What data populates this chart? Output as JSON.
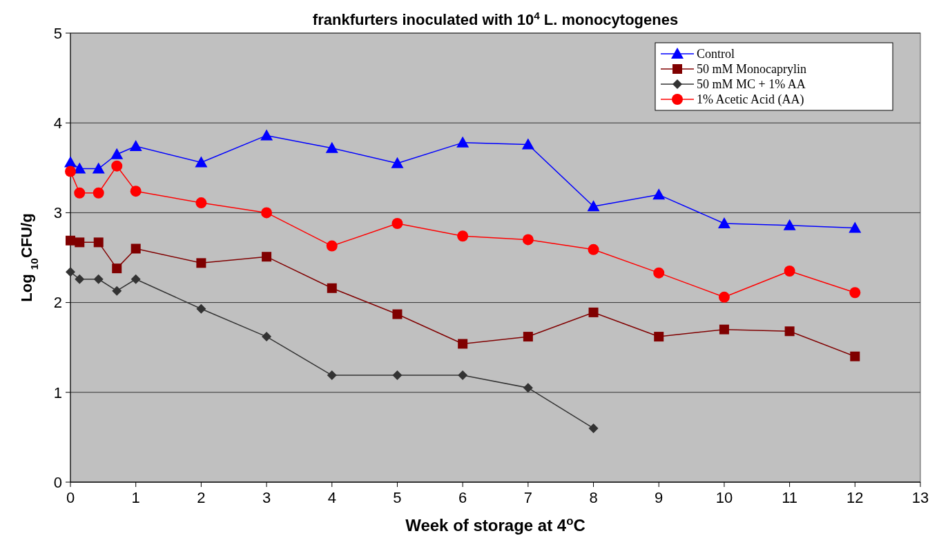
{
  "chart_data": {
    "type": "line",
    "title": "frankfurters inoculated with 10$^{4}$ L. monocytogenes",
    "xlabel": "Week  of storage at 4$^{o}$C",
    "ylabel": "Log $_{10}$CFU/g",
    "xlim": [
      0,
      13
    ],
    "xticks": [
      0,
      1,
      2,
      3,
      4,
      5,
      6,
      7,
      8,
      9,
      10,
      11,
      12,
      13
    ],
    "ylim": [
      0,
      5
    ],
    "yticks": [
      0,
      1,
      2,
      3,
      4,
      5
    ],
    "grid": "y",
    "legend": "top right",
    "x": [
      0,
      0.14,
      0.43,
      0.71,
      1,
      2,
      3,
      4,
      5,
      6,
      7,
      8,
      9,
      10,
      11,
      12
    ],
    "series": [
      {
        "name": "Control",
        "color": "#0000ff",
        "marker": "triangle",
        "values": [
          3.56,
          3.49,
          3.49,
          3.65,
          3.74,
          3.56,
          3.86,
          3.72,
          3.55,
          3.78,
          3.76,
          3.07,
          3.2,
          2.88,
          2.86,
          2.83
        ]
      },
      {
        "name": "50 mM Monocaprylin",
        "color": "#800000",
        "marker": "square",
        "values": [
          2.69,
          2.67,
          2.67,
          2.38,
          2.6,
          2.44,
          2.51,
          2.16,
          1.87,
          1.54,
          1.62,
          1.89,
          1.62,
          1.7,
          1.68,
          1.4
        ]
      },
      {
        "name": "50 mM MC + 1% AA",
        "color": "#333333",
        "marker": "diamond",
        "values": [
          2.34,
          2.26,
          2.26,
          2.13,
          2.26,
          1.93,
          1.62,
          1.19,
          1.19,
          1.19,
          1.05,
          0.6,
          null,
          null,
          null,
          null
        ]
      },
      {
        "name": "1% Acetic Acid (AA)",
        "color": "#ff0000",
        "marker": "circle",
        "values": [
          3.46,
          3.22,
          3.22,
          3.52,
          3.24,
          3.11,
          3.0,
          2.63,
          2.88,
          2.74,
          2.7,
          2.59,
          2.33,
          2.06,
          2.35,
          2.11
        ]
      }
    ]
  }
}
